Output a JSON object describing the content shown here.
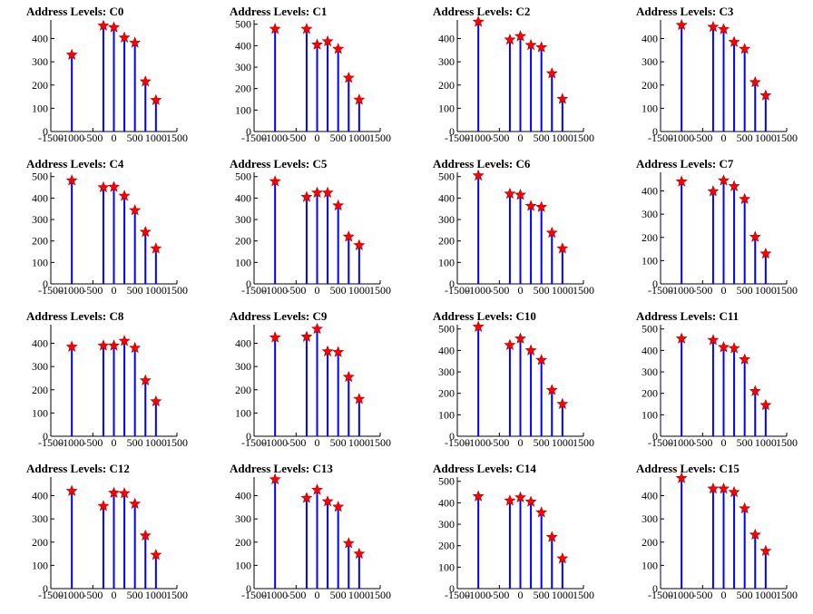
{
  "chart_data": [
    {
      "title": "Address Levels: C0",
      "type": "bar",
      "x": [
        -1000,
        -250,
        0,
        250,
        500,
        750,
        1000
      ],
      "values": [
        330,
        455,
        448,
        404,
        382,
        215,
        135
      ],
      "xlim": [
        -1500,
        1500
      ],
      "ylim": [
        0,
        480
      ],
      "xticks": [
        -1500,
        -1000,
        -500,
        0,
        500,
        1000,
        1500
      ],
      "yticks": [
        0,
        100,
        200,
        300,
        400
      ]
    },
    {
      "title": "Address Levels: C1",
      "type": "bar",
      "x": [
        -1000,
        -250,
        0,
        250,
        500,
        750,
        1000
      ],
      "values": [
        478,
        478,
        405,
        420,
        385,
        250,
        148
      ],
      "xlim": [
        -1500,
        1500
      ],
      "ylim": [
        0,
        520
      ],
      "xticks": [
        -1500,
        -1000,
        -500,
        0,
        500,
        1000,
        1500
      ],
      "yticks": [
        0,
        100,
        200,
        300,
        400,
        500
      ]
    },
    {
      "title": "Address Levels: C2",
      "type": "bar",
      "x": [
        -1000,
        -250,
        0,
        250,
        500,
        750,
        1000
      ],
      "values": [
        472,
        395,
        410,
        372,
        362,
        250,
        140
      ],
      "xlim": [
        -1500,
        1500
      ],
      "ylim": [
        0,
        480
      ],
      "xticks": [
        -1500,
        -1000,
        -500,
        0,
        500,
        1000,
        1500
      ],
      "yticks": [
        0,
        100,
        200,
        300,
        400
      ]
    },
    {
      "title": "Address Levels: C3",
      "type": "bar",
      "x": [
        -1000,
        -250,
        0,
        250,
        500,
        750,
        1000
      ],
      "values": [
        458,
        450,
        440,
        385,
        355,
        212,
        155
      ],
      "xlim": [
        -1500,
        1500
      ],
      "ylim": [
        0,
        480
      ],
      "xticks": [
        -1500,
        -1000,
        -500,
        0,
        500,
        1000,
        1500
      ],
      "yticks": [
        0,
        100,
        200,
        300,
        400
      ]
    },
    {
      "title": "Address Levels: C4",
      "type": "bar",
      "x": [
        -1000,
        -250,
        0,
        250,
        500,
        750,
        1000
      ],
      "values": [
        482,
        450,
        452,
        410,
        343,
        242,
        165
      ],
      "xlim": [
        -1500,
        1500
      ],
      "ylim": [
        0,
        520
      ],
      "xticks": [
        -1500,
        -1000,
        -500,
        0,
        500,
        1000,
        1500
      ],
      "yticks": [
        0,
        100,
        200,
        300,
        400,
        500
      ]
    },
    {
      "title": "Address Levels: C5",
      "type": "bar",
      "x": [
        -1000,
        -250,
        0,
        250,
        500,
        750,
        1000
      ],
      "values": [
        478,
        405,
        425,
        425,
        365,
        220,
        180
      ],
      "xlim": [
        -1500,
        1500
      ],
      "ylim": [
        0,
        520
      ],
      "xticks": [
        -1500,
        -1000,
        -500,
        0,
        500,
        1000,
        1500
      ],
      "yticks": [
        0,
        100,
        200,
        300,
        400,
        500
      ]
    },
    {
      "title": "Address Levels: C6",
      "type": "bar",
      "x": [
        -1000,
        -250,
        0,
        250,
        500,
        750,
        1000
      ],
      "values": [
        505,
        420,
        415,
        363,
        358,
        238,
        165
      ],
      "xlim": [
        -1500,
        1500
      ],
      "ylim": [
        0,
        520
      ],
      "xticks": [
        -1500,
        -1000,
        -500,
        0,
        500,
        1000,
        1500
      ],
      "yticks": [
        0,
        100,
        200,
        300,
        400,
        500
      ]
    },
    {
      "title": "Address Levels: C7",
      "type": "bar",
      "x": [
        -1000,
        -250,
        0,
        250,
        500,
        750,
        1000
      ],
      "values": [
        440,
        398,
        445,
        420,
        365,
        202,
        130
      ],
      "xlim": [
        -1500,
        1500
      ],
      "ylim": [
        0,
        480
      ],
      "xticks": [
        -1500,
        -1000,
        -500,
        0,
        500,
        1000,
        1500
      ],
      "yticks": [
        0,
        100,
        200,
        300,
        400
      ]
    },
    {
      "title": "Address Levels: C8",
      "type": "bar",
      "x": [
        -1000,
        -250,
        0,
        250,
        500,
        750,
        1000
      ],
      "values": [
        385,
        390,
        390,
        410,
        380,
        240,
        150
      ],
      "xlim": [
        -1500,
        1500
      ],
      "ylim": [
        0,
        480
      ],
      "xticks": [
        -1500,
        -1000,
        -500,
        0,
        500,
        1000,
        1500
      ],
      "yticks": [
        0,
        100,
        200,
        300,
        400
      ]
    },
    {
      "title": "Address Levels: C9",
      "type": "bar",
      "x": [
        -1000,
        -250,
        0,
        250,
        500,
        750,
        1000
      ],
      "values": [
        425,
        428,
        462,
        365,
        362,
        255,
        160
      ],
      "xlim": [
        -1500,
        1500
      ],
      "ylim": [
        0,
        480
      ],
      "xticks": [
        -1500,
        -1000,
        -500,
        0,
        500,
        1000,
        1500
      ],
      "yticks": [
        0,
        100,
        200,
        300,
        400
      ]
    },
    {
      "title": "Address Levels: C10",
      "type": "bar",
      "x": [
        -1000,
        -250,
        0,
        250,
        500,
        750,
        1000
      ],
      "values": [
        510,
        425,
        455,
        400,
        355,
        215,
        150
      ],
      "xlim": [
        -1500,
        1500
      ],
      "ylim": [
        0,
        520
      ],
      "xticks": [
        -1500,
        -1000,
        -500,
        0,
        500,
        1000,
        1500
      ],
      "yticks": [
        0,
        100,
        200,
        300,
        400,
        500
      ]
    },
    {
      "title": "Address Levels: C11",
      "type": "bar",
      "x": [
        -1000,
        -250,
        0,
        250,
        500,
        750,
        1000
      ],
      "values": [
        455,
        448,
        415,
        410,
        358,
        210,
        145
      ],
      "xlim": [
        -1500,
        1500
      ],
      "ylim": [
        0,
        520
      ],
      "xticks": [
        -1500,
        -1000,
        -500,
        0,
        500,
        1000,
        1500
      ],
      "yticks": [
        0,
        100,
        200,
        300,
        400,
        500
      ]
    },
    {
      "title": "Address Levels: C12",
      "type": "bar",
      "x": [
        -1000,
        -250,
        0,
        250,
        500,
        750,
        1000
      ],
      "values": [
        420,
        355,
        412,
        410,
        365,
        228,
        145
      ],
      "xlim": [
        -1500,
        1500
      ],
      "ylim": [
        0,
        480
      ],
      "xticks": [
        -1500,
        -1000,
        -500,
        0,
        500,
        1000,
        1500
      ],
      "yticks": [
        0,
        100,
        200,
        300,
        400
      ]
    },
    {
      "title": "Address Levels: C13",
      "type": "bar",
      "x": [
        -1000,
        -250,
        0,
        250,
        500,
        750,
        1000
      ],
      "values": [
        470,
        390,
        425,
        375,
        352,
        195,
        150
      ],
      "xlim": [
        -1500,
        1500
      ],
      "ylim": [
        0,
        480
      ],
      "xticks": [
        -1500,
        -1000,
        -500,
        0,
        500,
        1000,
        1500
      ],
      "yticks": [
        0,
        100,
        200,
        300,
        400
      ]
    },
    {
      "title": "Address Levels: C14",
      "type": "bar",
      "x": [
        -1000,
        -250,
        0,
        250,
        500,
        750,
        1000
      ],
      "values": [
        430,
        410,
        425,
        405,
        355,
        240,
        140
      ],
      "xlim": [
        -1500,
        1500
      ],
      "ylim": [
        0,
        520
      ],
      "xticks": [
        -1500,
        -1000,
        -500,
        0,
        500,
        1000,
        1500
      ],
      "yticks": [
        0,
        100,
        200,
        300,
        400,
        500
      ]
    },
    {
      "title": "Address Levels: C15",
      "type": "bar",
      "x": [
        -1000,
        -250,
        0,
        250,
        500,
        750,
        1000
      ],
      "values": [
        475,
        430,
        430,
        415,
        345,
        232,
        162
      ],
      "xlim": [
        -1500,
        1500
      ],
      "ylim": [
        0,
        480
      ],
      "xticks": [
        -1500,
        -1000,
        -500,
        0,
        500,
        1000,
        1500
      ],
      "yticks": [
        0,
        100,
        200,
        300,
        400
      ]
    }
  ],
  "colors": {
    "bars": "#0000ff",
    "markers": "#ff0000",
    "marker_edge": "#aa0000",
    "axes": "#000000"
  },
  "marker_icon": "star-icon"
}
